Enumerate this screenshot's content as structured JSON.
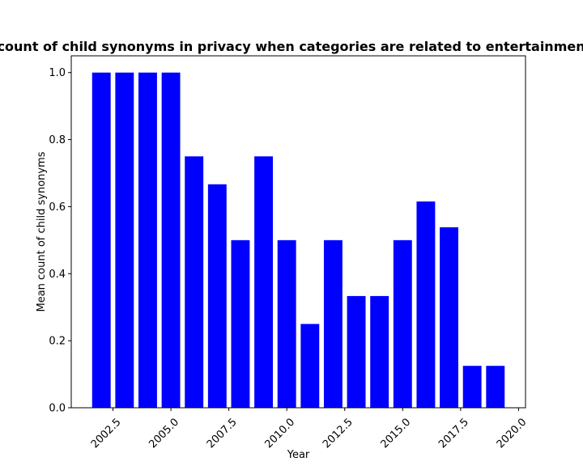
{
  "chart_data": {
    "type": "bar",
    "title": "Mean count of child synonyms in privacy when categories are related to entertainment;humor",
    "xlabel": "Year",
    "ylabel": "Mean count of child synonyms",
    "bar_color": "#0000ff",
    "x": [
      2002,
      2003,
      2004,
      2005,
      2006,
      2007,
      2008,
      2009,
      2010,
      2011,
      2012,
      2013,
      2014,
      2015,
      2016,
      2017,
      2018,
      2019
    ],
    "values": [
      1.0,
      1.0,
      1.0,
      1.0,
      0.75,
      0.6667,
      0.5,
      0.75,
      0.5,
      0.25,
      0.5,
      0.3333,
      0.3333,
      0.5,
      0.6154,
      0.5385,
      0.125,
      0.125
    ],
    "xlim": [
      2000.7,
      2020.3
    ],
    "ylim": [
      0,
      1.05
    ],
    "xticks": [
      2002.5,
      2005.0,
      2007.5,
      2010.0,
      2012.5,
      2015.0,
      2017.5,
      2020.0
    ],
    "xtick_labels": [
      "2002.5",
      "2005.0",
      "2007.5",
      "2010.0",
      "2012.5",
      "2015.0",
      "2017.5",
      "2020.0"
    ],
    "yticks": [
      0.0,
      0.2,
      0.4,
      0.6,
      0.8,
      1.0
    ],
    "ytick_labels": [
      "0.0",
      "0.2",
      "0.4",
      "0.6",
      "0.8",
      "1.0"
    ],
    "grid": false,
    "legend": false
  }
}
